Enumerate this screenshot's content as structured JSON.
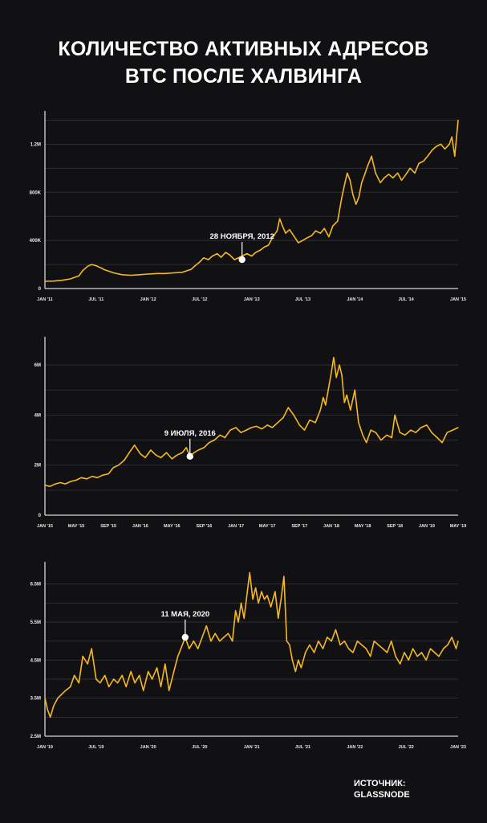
{
  "title": {
    "line1": "КОЛИЧЕСТВО АКТИВНЫХ АДРЕСОВ",
    "line2": "BTC ПОСЛЕ ХАЛВИНГА"
  },
  "source": {
    "line1": "ИСТОЧНИК:",
    "line2": "GLASSNODE"
  },
  "colors": {
    "line": "#f5b820",
    "background": "#111114",
    "grid": "#2e2e33"
  },
  "chart_data": [
    {
      "type": "line",
      "title": "",
      "xlabel": "",
      "ylabel": "",
      "grid": true,
      "ylim": [
        0,
        1450000
      ],
      "yticks": [
        {
          "value": 0,
          "label": "0"
        },
        {
          "value": 400000,
          "label": "400K"
        },
        {
          "value": 800000,
          "label": "800K"
        },
        {
          "value": 1200000,
          "label": "1.2M"
        }
      ],
      "xlim": [
        "2011-01-01",
        "2015-01-01"
      ],
      "xticks": [
        {
          "x": "2011-01-01",
          "label": "JAN '11"
        },
        {
          "x": "2011-07-01",
          "label": "JUL '11"
        },
        {
          "x": "2012-01-01",
          "label": "JAN '12"
        },
        {
          "x": "2012-07-01",
          "label": "JUL '12"
        },
        {
          "x": "2013-01-01",
          "label": "JAN '13"
        },
        {
          "x": "2013-07-01",
          "label": "JUL '13"
        },
        {
          "x": "2014-01-01",
          "label": "JAN '14"
        },
        {
          "x": "2014-07-01",
          "label": "JUL '14"
        },
        {
          "x": "2015-01-01",
          "label": "JAN '15"
        }
      ],
      "annotation": {
        "label": "28 НОЯБРЯ, 2012",
        "x": "2012-11-28",
        "y": 240000
      },
      "series": [
        {
          "x": [
            "2011-01-01",
            "2011-02-01",
            "2011-03-01",
            "2011-04-01",
            "2011-05-01",
            "2011-05-15",
            "2011-06-01",
            "2011-06-15",
            "2011-07-01",
            "2011-07-15",
            "2011-08-01",
            "2011-09-01",
            "2011-10-01",
            "2011-11-01",
            "2011-12-01",
            "2012-01-01",
            "2012-02-01",
            "2012-03-01",
            "2012-04-01",
            "2012-05-01",
            "2012-06-01",
            "2012-06-15",
            "2012-07-01",
            "2012-07-15",
            "2012-08-01",
            "2012-08-15",
            "2012-09-01",
            "2012-09-15",
            "2012-10-01",
            "2012-10-15",
            "2012-11-01",
            "2012-11-28",
            "2012-12-15",
            "2013-01-01",
            "2013-01-15",
            "2013-02-01",
            "2013-02-15",
            "2013-03-01",
            "2013-03-15",
            "2013-04-01",
            "2013-04-10",
            "2013-04-20",
            "2013-05-01",
            "2013-05-15",
            "2013-06-01",
            "2013-06-15",
            "2013-07-01",
            "2013-07-15",
            "2013-08-01",
            "2013-08-15",
            "2013-09-01",
            "2013-09-15",
            "2013-10-01",
            "2013-10-15",
            "2013-11-01",
            "2013-11-15",
            "2013-11-25",
            "2013-12-05",
            "2013-12-15",
            "2013-12-25",
            "2014-01-05",
            "2014-01-15",
            "2014-01-25",
            "2014-02-05",
            "2014-02-15",
            "2014-03-01",
            "2014-03-15",
            "2014-04-01",
            "2014-04-15",
            "2014-05-01",
            "2014-05-15",
            "2014-06-01",
            "2014-06-15",
            "2014-07-01",
            "2014-07-15",
            "2014-08-01",
            "2014-08-15",
            "2014-09-01",
            "2014-09-15",
            "2014-10-01",
            "2014-10-15",
            "2014-11-01",
            "2014-11-15",
            "2014-12-01",
            "2014-12-10",
            "2014-12-20",
            "2015-01-01"
          ],
          "y": [
            60000,
            62000,
            68000,
            80000,
            105000,
            150000,
            185000,
            200000,
            190000,
            175000,
            155000,
            130000,
            115000,
            110000,
            115000,
            120000,
            125000,
            125000,
            130000,
            135000,
            160000,
            190000,
            220000,
            255000,
            240000,
            270000,
            290000,
            260000,
            300000,
            280000,
            240000,
            270000,
            290000,
            270000,
            300000,
            320000,
            345000,
            360000,
            420000,
            480000,
            580000,
            520000,
            460000,
            490000,
            430000,
            380000,
            400000,
            420000,
            440000,
            480000,
            460000,
            500000,
            430000,
            520000,
            560000,
            750000,
            860000,
            960000,
            900000,
            780000,
            700000,
            760000,
            880000,
            950000,
            1020000,
            1100000,
            960000,
            880000,
            920000,
            950000,
            920000,
            960000,
            900000,
            950000,
            1000000,
            960000,
            1040000,
            1060000,
            1100000,
            1150000,
            1180000,
            1200000,
            1160000,
            1200000,
            1260000,
            1100000,
            1400000
          ]
        }
      ]
    },
    {
      "type": "line",
      "title": "",
      "xlabel": "",
      "ylabel": "",
      "grid": true,
      "ylim": [
        0,
        7000000
      ],
      "yticks": [
        {
          "value": 0,
          "label": "0"
        },
        {
          "value": 2000000,
          "label": "2M"
        },
        {
          "value": 4000000,
          "label": "4M"
        },
        {
          "value": 6000000,
          "label": "6M"
        }
      ],
      "xlim": [
        "2015-01-01",
        "2019-05-01"
      ],
      "xticks": [
        {
          "x": "2015-01-01",
          "label": "JAN '15"
        },
        {
          "x": "2015-05-01",
          "label": "MAY '15"
        },
        {
          "x": "2015-09-01",
          "label": "SEP '15"
        },
        {
          "x": "2016-01-01",
          "label": "JAN '16"
        },
        {
          "x": "2016-05-01",
          "label": "MAY '16"
        },
        {
          "x": "2016-09-01",
          "label": "SEP '16"
        },
        {
          "x": "2017-01-01",
          "label": "JAN '17"
        },
        {
          "x": "2017-05-01",
          "label": "MAY '17"
        },
        {
          "x": "2017-09-01",
          "label": "SEP '17"
        },
        {
          "x": "2018-01-01",
          "label": "JAN '18"
        },
        {
          "x": "2018-05-01",
          "label": "MAY '18"
        },
        {
          "x": "2018-09-01",
          "label": "SEP '18"
        },
        {
          "x": "2019-01-01",
          "label": "JAN '19"
        },
        {
          "x": "2019-05-01",
          "label": "MAY '19"
        }
      ],
      "annotation": {
        "label": "9 ИЮЛЯ, 2016",
        "x": "2016-07-09",
        "y": 2350000
      },
      "series": [
        {
          "x": [
            "2015-01-01",
            "2015-01-20",
            "2015-02-10",
            "2015-03-01",
            "2015-03-20",
            "2015-04-10",
            "2015-05-01",
            "2015-05-20",
            "2015-06-10",
            "2015-07-01",
            "2015-07-20",
            "2015-08-10",
            "2015-09-01",
            "2015-09-20",
            "2015-10-10",
            "2015-11-01",
            "2015-11-20",
            "2015-12-10",
            "2016-01-01",
            "2016-01-20",
            "2016-02-10",
            "2016-03-01",
            "2016-03-20",
            "2016-04-10",
            "2016-05-01",
            "2016-05-20",
            "2016-06-10",
            "2016-06-25",
            "2016-07-09",
            "2016-07-25",
            "2016-08-10",
            "2016-09-01",
            "2016-09-20",
            "2016-10-10",
            "2016-11-01",
            "2016-11-20",
            "2016-12-10",
            "2017-01-01",
            "2017-01-20",
            "2017-02-10",
            "2017-03-01",
            "2017-03-20",
            "2017-04-10",
            "2017-05-01",
            "2017-05-20",
            "2017-06-10",
            "2017-07-01",
            "2017-07-20",
            "2017-08-10",
            "2017-09-01",
            "2017-09-20",
            "2017-10-10",
            "2017-11-01",
            "2017-11-20",
            "2017-12-01",
            "2017-12-10",
            "2017-12-20",
            "2018-01-01",
            "2018-01-10",
            "2018-01-20",
            "2018-02-01",
            "2018-02-10",
            "2018-02-20",
            "2018-03-01",
            "2018-03-15",
            "2018-04-01",
            "2018-04-15",
            "2018-05-01",
            "2018-05-15",
            "2018-06-01",
            "2018-06-20",
            "2018-07-10",
            "2018-08-01",
            "2018-08-20",
            "2018-09-01",
            "2018-09-20",
            "2018-10-10",
            "2018-11-01",
            "2018-11-20",
            "2018-12-10",
            "2019-01-01",
            "2019-01-20",
            "2019-02-10",
            "2019-03-01",
            "2019-03-20",
            "2019-04-10",
            "2019-05-01"
          ],
          "y": [
            1200000,
            1150000,
            1250000,
            1300000,
            1250000,
            1350000,
            1400000,
            1500000,
            1450000,
            1550000,
            1500000,
            1600000,
            1650000,
            1900000,
            2000000,
            2200000,
            2500000,
            2800000,
            2450000,
            2300000,
            2600000,
            2400000,
            2300000,
            2500000,
            2250000,
            2400000,
            2500000,
            2700000,
            2350000,
            2500000,
            2600000,
            2700000,
            2900000,
            3000000,
            3200000,
            3100000,
            3400000,
            3500000,
            3300000,
            3400000,
            3500000,
            3550000,
            3450000,
            3600000,
            3500000,
            3700000,
            3900000,
            4300000,
            4000000,
            3600000,
            3400000,
            3800000,
            3700000,
            4200000,
            4700000,
            4400000,
            5000000,
            5700000,
            6300000,
            5500000,
            6000000,
            5600000,
            4500000,
            4800000,
            4200000,
            5000000,
            3700000,
            3200000,
            2900000,
            3400000,
            3300000,
            3000000,
            3200000,
            3100000,
            4000000,
            3300000,
            3200000,
            3400000,
            3300000,
            3500000,
            3600000,
            3300000,
            3100000,
            2900000,
            3300000,
            3400000,
            3500000
          ]
        }
      ]
    },
    {
      "type": "line",
      "title": "",
      "xlabel": "",
      "ylabel": "",
      "grid": true,
      "ylim": [
        2500000,
        7000000
      ],
      "yticks": [
        {
          "value": 2500000,
          "label": "2.5M"
        },
        {
          "value": 3500000,
          "label": "3.5M"
        },
        {
          "value": 4500000,
          "label": "4.5M"
        },
        {
          "value": 5500000,
          "label": "5.5M"
        },
        {
          "value": 6500000,
          "label": "6.5M"
        }
      ],
      "xlim": [
        "2019-01-01",
        "2023-01-01"
      ],
      "xticks": [
        {
          "x": "2019-01-01",
          "label": "JAN '19"
        },
        {
          "x": "2019-07-01",
          "label": "JUL '19"
        },
        {
          "x": "2020-01-01",
          "label": "JAN '20"
        },
        {
          "x": "2020-07-01",
          "label": "JUL '20"
        },
        {
          "x": "2021-01-01",
          "label": "JAN '21"
        },
        {
          "x": "2021-07-01",
          "label": "JUL '21"
        },
        {
          "x": "2022-01-01",
          "label": "JAN '22"
        },
        {
          "x": "2022-07-01",
          "label": "JUL '22"
        },
        {
          "x": "2023-01-01",
          "label": "JAN '23"
        }
      ],
      "annotation": {
        "label": "11 МАЯ, 2020",
        "x": "2020-05-11",
        "y": 5100000
      },
      "series": [
        {
          "x": [
            "2019-01-01",
            "2019-01-10",
            "2019-01-20",
            "2019-02-01",
            "2019-02-15",
            "2019-03-01",
            "2019-03-15",
            "2019-04-01",
            "2019-04-15",
            "2019-05-01",
            "2019-05-15",
            "2019-06-01",
            "2019-06-15",
            "2019-07-01",
            "2019-07-15",
            "2019-08-01",
            "2019-08-15",
            "2019-09-01",
            "2019-09-15",
            "2019-10-01",
            "2019-10-15",
            "2019-11-01",
            "2019-11-15",
            "2019-12-01",
            "2019-12-15",
            "2020-01-01",
            "2020-01-15",
            "2020-02-01",
            "2020-02-15",
            "2020-03-01",
            "2020-03-15",
            "2020-04-01",
            "2020-04-15",
            "2020-05-01",
            "2020-05-11",
            "2020-05-25",
            "2020-06-10",
            "2020-06-25",
            "2020-07-10",
            "2020-07-25",
            "2020-08-10",
            "2020-08-25",
            "2020-09-10",
            "2020-09-25",
            "2020-10-10",
            "2020-10-25",
            "2020-11-05",
            "2020-11-15",
            "2020-11-25",
            "2020-12-05",
            "2020-12-15",
            "2020-12-25",
            "2021-01-05",
            "2021-01-15",
            "2021-01-25",
            "2021-02-05",
            "2021-02-15",
            "2021-02-25",
            "2021-03-10",
            "2021-03-25",
            "2021-04-05",
            "2021-04-15",
            "2021-04-25",
            "2021-05-05",
            "2021-05-15",
            "2021-05-25",
            "2021-06-05",
            "2021-06-15",
            "2021-06-25",
            "2021-07-10",
            "2021-07-25",
            "2021-08-10",
            "2021-08-25",
            "2021-09-10",
            "2021-09-25",
            "2021-10-10",
            "2021-10-25",
            "2021-11-10",
            "2021-11-25",
            "2021-12-10",
            "2021-12-25",
            "2022-01-10",
            "2022-01-25",
            "2022-02-10",
            "2022-02-25",
            "2022-03-10",
            "2022-03-25",
            "2022-04-10",
            "2022-04-25",
            "2022-05-10",
            "2022-05-25",
            "2022-06-10",
            "2022-06-25",
            "2022-07-10",
            "2022-07-25",
            "2022-08-10",
            "2022-08-25",
            "2022-09-10",
            "2022-09-25",
            "2022-10-10",
            "2022-10-25",
            "2022-11-10",
            "2022-11-25",
            "2022-12-10",
            "2022-12-25",
            "2023-01-01"
          ],
          "y": [
            3500000,
            3200000,
            3000000,
            3300000,
            3500000,
            3600000,
            3700000,
            3800000,
            4100000,
            3900000,
            4600000,
            4400000,
            4800000,
            4000000,
            3900000,
            4100000,
            3800000,
            4000000,
            3900000,
            4100000,
            3800000,
            4200000,
            3900000,
            4100000,
            3700000,
            4200000,
            4000000,
            4300000,
            3800000,
            4400000,
            3700000,
            4200000,
            4600000,
            4900000,
            5100000,
            4800000,
            5000000,
            4800000,
            5100000,
            5400000,
            5000000,
            5200000,
            5000000,
            5100000,
            5200000,
            5000000,
            5800000,
            5500000,
            6000000,
            5600000,
            6200000,
            6800000,
            6100000,
            6400000,
            6000000,
            6300000,
            6100000,
            6200000,
            5900000,
            6300000,
            5600000,
            6100000,
            6700000,
            5000000,
            4900000,
            4500000,
            4200000,
            4500000,
            4300000,
            4700000,
            4900000,
            4700000,
            5000000,
            4800000,
            5100000,
            5000000,
            5300000,
            4900000,
            5000000,
            4800000,
            4700000,
            5000000,
            4900000,
            4800000,
            4600000,
            5000000,
            4900000,
            4800000,
            4700000,
            5000000,
            4600000,
            4400000,
            4700000,
            4500000,
            4800000,
            4600000,
            4700000,
            4500000,
            4800000,
            4700000,
            4600000,
            4800000,
            4900000,
            5100000,
            4800000,
            5000000
          ]
        }
      ]
    }
  ]
}
